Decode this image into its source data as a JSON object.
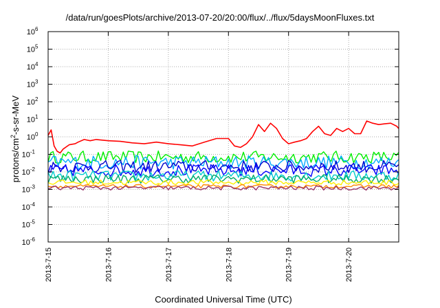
{
  "chart_data": {
    "type": "line",
    "title": "/data/run/goesPlots/archive/2013-07-20/20:00/flux/../flux/5daysMoonFluxes.txt",
    "xlabel": "Coordinated Universal Time (UTC)",
    "ylabel": {
      "prefix": "protons/cm",
      "sup": "2",
      "suffix": "-s-sr-MeV"
    },
    "y_scale": "log",
    "ylim": [
      1e-06,
      1000000
    ],
    "y_ticks": [
      {
        "base": "10",
        "exp": "-6",
        "value": 1e-06
      },
      {
        "base": "10",
        "exp": "-5",
        "value": 1e-05
      },
      {
        "base": "10",
        "exp": "-4",
        "value": 0.0001
      },
      {
        "base": "10",
        "exp": "-3",
        "value": 0.001
      },
      {
        "base": "10",
        "exp": "-2",
        "value": 0.01
      },
      {
        "base": "10",
        "exp": "-1",
        "value": 0.1
      },
      {
        "base": "10",
        "exp": "0",
        "value": 1
      },
      {
        "base": "10",
        "exp": "1",
        "value": 10
      },
      {
        "base": "10",
        "exp": "2",
        "value": 100
      },
      {
        "base": "10",
        "exp": "3",
        "value": 1000
      },
      {
        "base": "10",
        "exp": "4",
        "value": 10000
      },
      {
        "base": "10",
        "exp": "5",
        "value": 100000
      },
      {
        "base": "10",
        "exp": "6",
        "value": 1000000
      }
    ],
    "x_range": [
      "2013-07-15",
      "2013-07-20 20:00"
    ],
    "x_ticks": [
      "2013-7-15",
      "2013-7-16",
      "2013-7-17",
      "2013-7-18",
      "2013-7-19",
      "2013-7-20"
    ],
    "grid": true,
    "series": [
      {
        "color": "#ff0000",
        "x_days": [
          0,
          0.05,
          0.1,
          0.15,
          0.2,
          0.25,
          0.35,
          0.45,
          0.5,
          0.6,
          0.7,
          0.8,
          1.0,
          1.2,
          1.4,
          1.6,
          1.8,
          2.0,
          2.2,
          2.4,
          2.6,
          2.8,
          3.0,
          3.1,
          3.2,
          3.3,
          3.4,
          3.5,
          3.6,
          3.7,
          3.8,
          3.9,
          4.0,
          4.1,
          4.2,
          4.3,
          4.4,
          4.5,
          4.6,
          4.7,
          4.8,
          4.9,
          5.0,
          5.1,
          5.2,
          5.3,
          5.4,
          5.5,
          5.6,
          5.7,
          5.8,
          5.83
        ],
        "values": [
          1.2,
          2.5,
          0.3,
          0.15,
          0.12,
          0.2,
          0.35,
          0.4,
          0.5,
          0.7,
          0.6,
          0.7,
          0.6,
          0.55,
          0.45,
          0.4,
          0.5,
          0.4,
          0.35,
          0.3,
          0.5,
          0.8,
          0.8,
          0.3,
          0.25,
          0.4,
          1.0,
          5.0,
          2.0,
          6.0,
          3.0,
          0.8,
          0.4,
          0.5,
          0.6,
          0.8,
          2.0,
          4.0,
          1.5,
          1.2,
          3.0,
          2.0,
          3.0,
          1.5,
          1.5,
          8.0,
          6.0,
          5.0,
          5.5,
          6.0,
          4.0,
          3.0
        ]
      },
      {
        "color": "#00ee00",
        "level": 0.07,
        "spread": 0.35
      },
      {
        "color": "#00aaff",
        "level": 0.035,
        "spread": 0.4
      },
      {
        "color": "#0000cc",
        "level": 0.02,
        "spread": 0.35
      },
      {
        "color": "#0000ff",
        "level": 0.012,
        "spread": 0.35
      },
      {
        "color": "#00cccc",
        "level": 0.006,
        "spread": 0.3
      },
      {
        "color": "#00aa66",
        "level": 0.004,
        "spread": 0.25
      },
      {
        "color": "#ffee00",
        "level": 0.0025,
        "spread": 0.15
      },
      {
        "color": "#ff8800",
        "level": 0.0015,
        "spread": 0.1
      },
      {
        "color": "#993366",
        "level": 0.0012,
        "spread": 0.12
      }
    ]
  }
}
